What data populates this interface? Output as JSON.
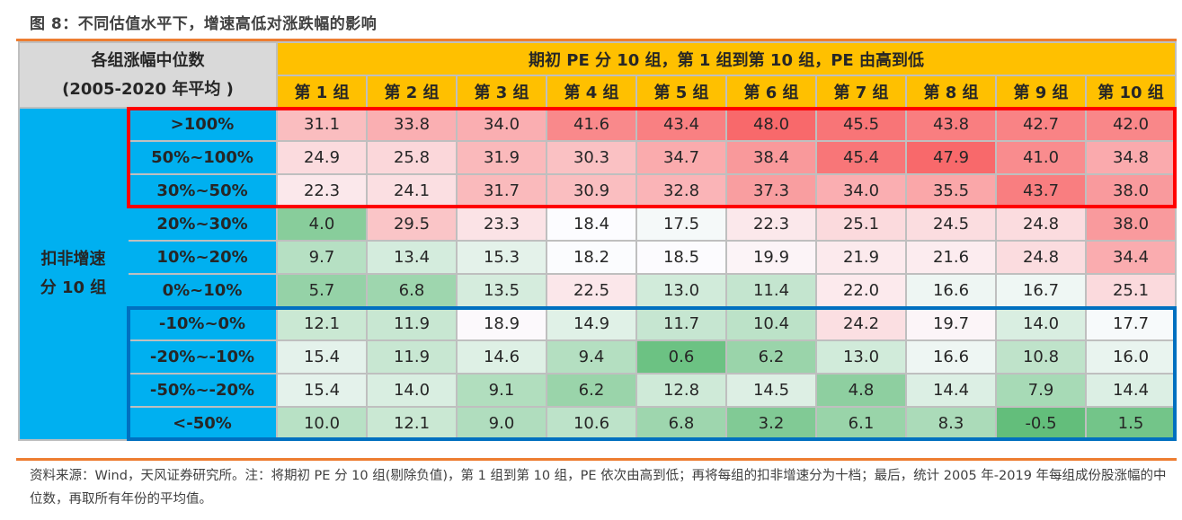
{
  "title": "图 8：不同估值水平下，增速高低对涨跌幅的影响",
  "table": {
    "corner_line1": "各组涨幅中位数",
    "corner_line2": "(2005-2020 年平均 )",
    "pe_header": "期初 PE 分 10 组，第 1 组到第 10 组，PE 由高到低",
    "side_label_line1": "扣非增速",
    "side_label_line2": "分 10 组",
    "columns": [
      "第 1 组",
      "第 2 组",
      "第 3 组",
      "第 4 组",
      "第 5 组",
      "第 6 组",
      "第 7 组",
      "第 8 组",
      "第 9 组",
      "第 10 组"
    ],
    "rows": [
      {
        "label": ">100%",
        "values": [
          "31.1",
          "33.8",
          "34.0",
          "41.6",
          "43.4",
          "48.0",
          "45.5",
          "43.8",
          "42.7",
          "42.0"
        ]
      },
      {
        "label": "50%~100%",
        "values": [
          "24.9",
          "25.8",
          "31.9",
          "30.3",
          "34.7",
          "38.4",
          "45.4",
          "47.9",
          "41.0",
          "34.8"
        ]
      },
      {
        "label": "30%~50%",
        "values": [
          "22.3",
          "24.1",
          "31.7",
          "30.9",
          "32.8",
          "37.3",
          "34.0",
          "35.5",
          "43.7",
          "38.0"
        ]
      },
      {
        "label": "20%~30%",
        "values": [
          "4.0",
          "29.5",
          "23.3",
          "18.4",
          "17.5",
          "22.3",
          "25.1",
          "24.5",
          "24.8",
          "38.0"
        ]
      },
      {
        "label": "10%~20%",
        "values": [
          "9.7",
          "13.4",
          "15.3",
          "18.2",
          "18.5",
          "19.9",
          "21.9",
          "21.6",
          "24.8",
          "34.4"
        ]
      },
      {
        "label": "0%~10%",
        "values": [
          "5.7",
          "6.8",
          "13.5",
          "22.5",
          "13.0",
          "11.4",
          "22.0",
          "16.6",
          "16.7",
          "25.1"
        ]
      },
      {
        "label": "-10%~0%",
        "values": [
          "12.1",
          "11.9",
          "18.9",
          "14.9",
          "11.7",
          "10.4",
          "24.2",
          "19.7",
          "14.0",
          "17.7"
        ]
      },
      {
        "label": "-20%~-10%",
        "values": [
          "15.4",
          "11.9",
          "14.6",
          "9.4",
          "0.6",
          "6.2",
          "13.0",
          "16.6",
          "10.8",
          "16.0"
        ]
      },
      {
        "label": "-50%~-20%",
        "values": [
          "15.4",
          "14.0",
          "9.1",
          "6.2",
          "12.8",
          "14.5",
          "4.8",
          "14.4",
          "7.9",
          "14.4"
        ]
      },
      {
        "label": "<-50%",
        "values": [
          "10.0",
          "12.1",
          "9.0",
          "10.6",
          "6.8",
          "3.2",
          "6.1",
          "8.3",
          "-0.5",
          "1.5"
        ]
      }
    ]
  },
  "colors": {
    "low": "#63BE7B",
    "mid": "#FCFCFF",
    "high": "#F8696B",
    "highlight_top": "#FF0000",
    "highlight_bottom": "#0070C0"
  },
  "note": "资料来源：Wind，天风证券研究所。注：将期初 PE 分 10 组(剔除负值)，第 1 组到第 10 组，PE 依次由高到低；再将每组的扣非增速分为十档；最后，统计 2005 年-2019 年每组成份股涨幅的中位数，再取所有年份的平均值。",
  "chart_data": {
    "type": "heatmap",
    "title": "图 8：不同估值水平下，增速高低对涨跌幅的影响",
    "xlabel": "期初 PE 分 10 组，第 1 组到第 10 组，PE 由高到低",
    "ylabel": "扣非增速分 10 组",
    "value_label": "各组涨幅中位数 (2005-2020 年平均)",
    "x": [
      "第 1 组",
      "第 2 组",
      "第 3 组",
      "第 4 组",
      "第 5 组",
      "第 6 组",
      "第 7 组",
      "第 8 组",
      "第 9 组",
      "第 10 组"
    ],
    "y": [
      ">100%",
      "50%~100%",
      "30%~50%",
      "20%~30%",
      "10%~20%",
      "0%~10%",
      "-10%~0%",
      "-20%~-10%",
      "-50%~-20%",
      "<-50%"
    ],
    "values": [
      [
        31.1,
        33.8,
        34.0,
        41.6,
        43.4,
        48.0,
        45.5,
        43.8,
        42.7,
        42.0
      ],
      [
        24.9,
        25.8,
        31.9,
        30.3,
        34.7,
        38.4,
        45.4,
        47.9,
        41.0,
        34.8
      ],
      [
        22.3,
        24.1,
        31.7,
        30.9,
        32.8,
        37.3,
        34.0,
        35.5,
        43.7,
        38.0
      ],
      [
        4.0,
        29.5,
        23.3,
        18.4,
        17.5,
        22.3,
        25.1,
        24.5,
        24.8,
        38.0
      ],
      [
        9.7,
        13.4,
        15.3,
        18.2,
        18.5,
        19.9,
        21.9,
        21.6,
        24.8,
        34.4
      ],
      [
        5.7,
        6.8,
        13.5,
        22.5,
        13.0,
        11.4,
        22.0,
        16.6,
        16.7,
        25.1
      ],
      [
        12.1,
        11.9,
        18.9,
        14.9,
        11.7,
        10.4,
        24.2,
        19.7,
        14.0,
        17.7
      ],
      [
        15.4,
        11.9,
        14.6,
        9.4,
        0.6,
        6.2,
        13.0,
        16.6,
        10.8,
        16.0
      ],
      [
        15.4,
        14.0,
        9.1,
        6.2,
        12.8,
        14.5,
        4.8,
        14.4,
        7.9,
        14.4
      ],
      [
        10.0,
        12.1,
        9.0,
        10.6,
        6.8,
        3.2,
        6.1,
        8.3,
        -0.5,
        1.5
      ]
    ],
    "color_scale": {
      "min": "#63BE7B",
      "mid": "#FCFCFF",
      "max": "#F8696B"
    },
    "annotations": [
      "Red box: rows >100% to 30%~50%",
      "Blue box: rows -10%~0% to <-50%"
    ]
  }
}
